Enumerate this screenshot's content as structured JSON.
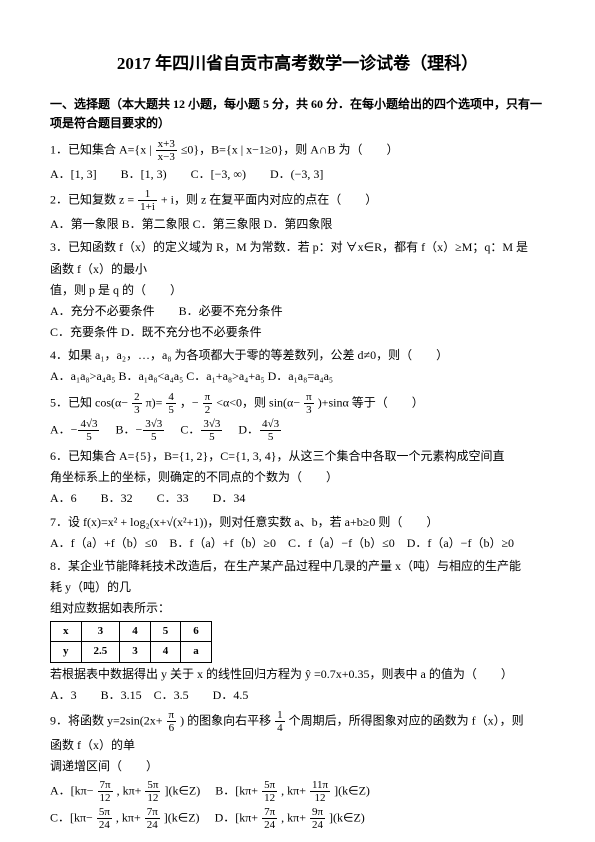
{
  "title": "2017 年四川省自贡市高考数学一诊试卷（理科）",
  "section1": "一、选择题（本大题共 12 小题，每小题 5 分，共 60 分．在每小题给出的四个选项中，只有一项是符合题目要求的）",
  "q1": {
    "stem_a": "1．已知集合 A={x |",
    "frac_n": "x+3",
    "frac_d": "x−3",
    "stem_b": "≤0}，B={x | x−1≥0}，则 A∩B 为（　　）",
    "opts": "A．[1, 3]　　B．[1, 3)　　C．[−3, ∞)　　D．(−3, 3]"
  },
  "q2": {
    "stem_a": "2．已知复数 z =",
    "frac_n": "1",
    "frac_d": "1+i",
    "stem_b": "+ i，则 z 在复平面内对应的点在（　　）",
    "opts": "A．第一象限 B．第二象限 C．第三象限 D．第四象限"
  },
  "q3": {
    "l1": "3．已知函数 f（x）的定义域为 R，M 为常数．若 p：对 ∀x∈R，都有 f（x）≥M；q：M 是",
    "l2": "函数 f（x）的最小",
    "l3": "值，则 p 是 q 的（　　）",
    "opts1": "A．充分不必要条件　　B．必要不充分条件",
    "opts2": "C．充要条件 D．既不充分也不必要条件"
  },
  "q4": {
    "stem": "4．如果 a₁，a₂，…，a₈ 为各项都大于零的等差数列，公差 d≠0，则（　　）",
    "opts": "A．a₁a₈>a₄a₅ B．a₁a₈<a₄a₅ C．a₁+a₈>a₄+a₅ D．a₁a₈=a₄a₅"
  },
  "q5": {
    "stem_a": "5．已知 cos(α−",
    "f1n": "2",
    "f1d": "3",
    "stem_b": "π)=",
    "f2n": "4",
    "f2d": "5",
    "stem_c": "，−",
    "f3n": "π",
    "f3d": "2",
    "stem_d": "<α<0，则 sin(α−",
    "f4n": "π",
    "f4d": "3",
    "stem_e": ")+sinα 等于（　　）",
    "oA_n": "4√3",
    "oA_d": "5",
    "oB_n": "3√3",
    "oB_d": "5",
    "oC_n": "3√3",
    "oC_d": "5",
    "oD_n": "4√3",
    "oD_d": "5"
  },
  "q6": {
    "l1": "6．已知集合 A={5}，B={1, 2}，C={1, 3, 4}，从这三个集合中各取一个元素构成空间直",
    "l2": "角坐标系上的坐标，则确定的不同点的个数为（　　）",
    "opts": "A．6　　B．32　　C．33　　D．34"
  },
  "q7": {
    "stem": "7．设 f(x)=x² + log₂(x+√(x²+1))，则对任意实数 a、b，若 a+b≥0 则（　　）",
    "opts": "A．f（a）+f（b）≤0　B．f（a）+f（b）≥0　C．f（a）−f（b）≤0　D．f（a）−f（b）≥0"
  },
  "q8": {
    "l1": "8．某企业节能降耗技术改造后，在生产某产品过程中几录的产量 x（吨）与相应的生产能",
    "l2": "耗 y（吨）的几",
    "l3": "组对应数据如表所示：",
    "t": {
      "r1": [
        "x",
        "3",
        "4",
        "5",
        "6"
      ],
      "r2": [
        "y",
        "2.5",
        "3",
        "4",
        "a"
      ]
    },
    "l4a": "若根据表中数据得出 y 关于 x 的线性回归方程为 ",
    "hat": "ŷ",
    "l4b": "=0.7x+0.35，则表中 a 的值为（　　）",
    "opts": "A．3　　B．3.15　C．3.5　　D．4.5"
  },
  "q9": {
    "stem_a": "9．将函数 y=2sin(2x+",
    "f1n": "π",
    "f1d": "6",
    "stem_b": ") 的图象向右平移",
    "f2n": "1",
    "f2d": "4",
    "stem_c": "个周期后，所得图象对应的函数为 f（x），则",
    "l2": "函数 f（x）的单",
    "l3": "调递增区间（　　）",
    "A_a": "A．[kπ−",
    "A_f1n": "7π",
    "A_f1d": "12",
    "A_b": ", kπ+",
    "A_f2n": "5π",
    "A_f2d": "12",
    "A_c": "](k∈Z)",
    "B_a": "B．[kπ+",
    "B_f1n": "5π",
    "B_f1d": "12",
    "B_b": ", kπ+",
    "B_f2n": "11π",
    "B_f2d": "12",
    "B_c": "](k∈Z)",
    "C_a": "C．[kπ−",
    "C_f1n": "5π",
    "C_f1d": "24",
    "C_b": ", kπ+",
    "C_f2n": "7π",
    "C_f2d": "24",
    "C_c": "](k∈Z)",
    "D_a": "D．[kπ+",
    "D_f1n": "7π",
    "D_f1d": "24",
    "D_b": ", kπ+",
    "D_f2n": "9π",
    "D_f2d": "24",
    "D_c": "](k∈Z)"
  }
}
